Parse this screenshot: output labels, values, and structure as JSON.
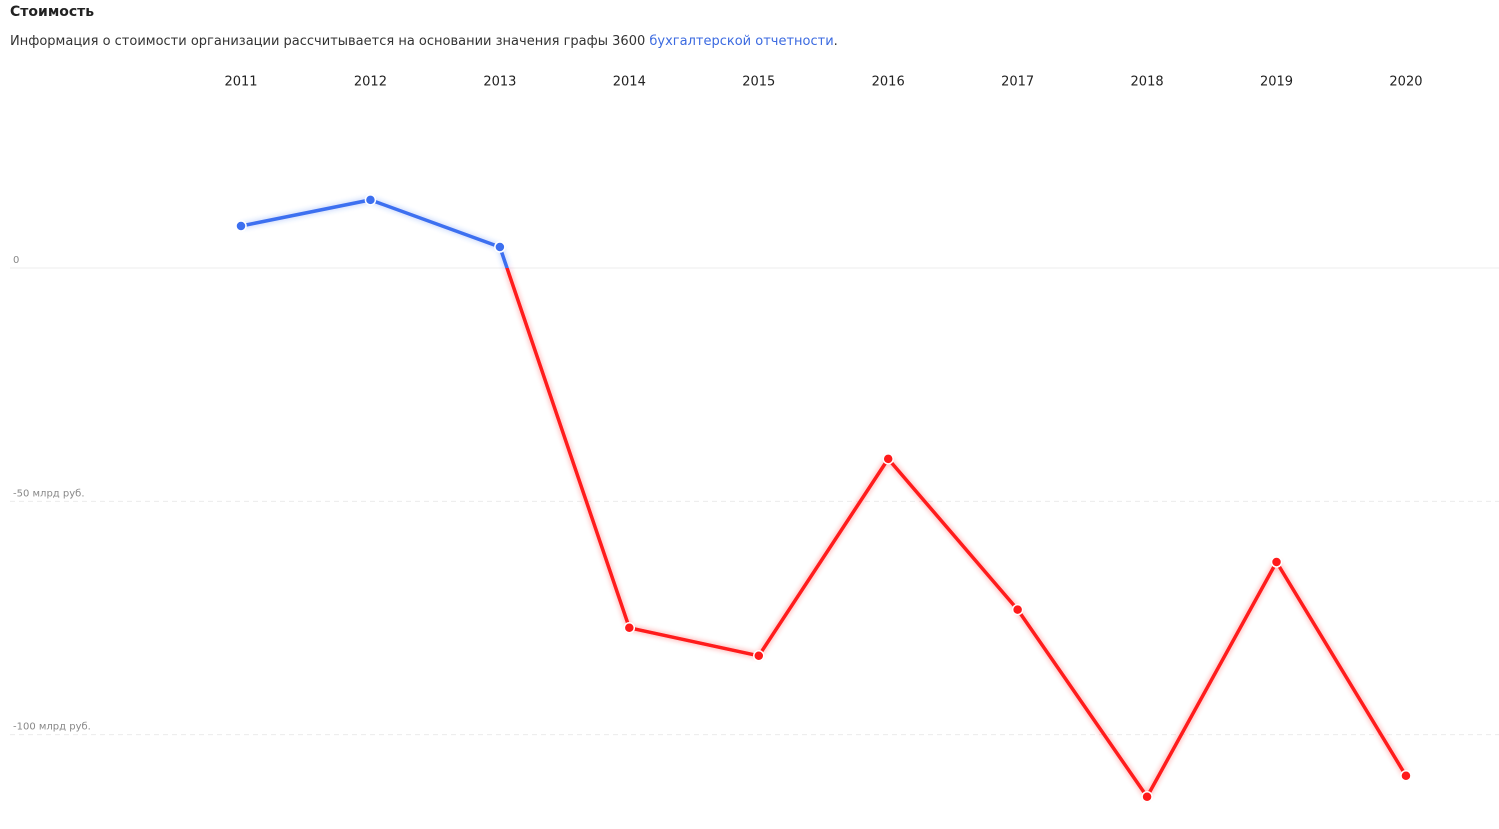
{
  "chart_data": {
    "type": "line",
    "title": "Стоимость",
    "subtitle": "Информация о стоимости организации рассчитывается на основании значения графы 3600",
    "subtitle_link": "бухгалтерской отчетности",
    "subtitle_end": ".",
    "categories": [
      "2011",
      "2012",
      "2013",
      "2014",
      "2015",
      "2016",
      "2017",
      "2018",
      "2019",
      "2020"
    ],
    "values": [
      9.0,
      14.6,
      4.5,
      -77.1,
      -83.1,
      -40.9,
      -73.2,
      -113.3,
      -63.0,
      -108.8
    ],
    "positive_color": "#3c6ff0",
    "negative_color": "#ff1a1a",
    "ylim": [
      -117,
      36
    ],
    "yticks": [
      0,
      {
        "value": -50,
        "label": "-50 млрд руб."
      },
      {
        "value": -100,
        "label": "-100 млрд руб."
      }
    ],
    "grid": true
  }
}
